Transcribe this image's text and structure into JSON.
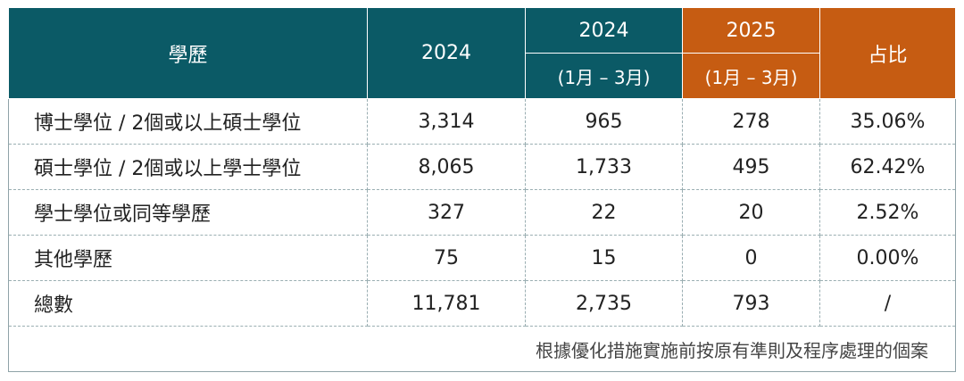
{
  "header": {
    "education": "學歷",
    "col_2024": "2024",
    "col_2024_q": "2024",
    "col_2024_q_sub": "(1月 – 3月)",
    "col_2025": "2025",
    "col_2025_sub": "(1月 – 3月)",
    "share": "占比"
  },
  "rows": [
    {
      "label": "博士學位 / 2個或以上碩士學位",
      "y2024": "3,314",
      "y2024q": "965",
      "y2025q": "278",
      "share": "35.06%"
    },
    {
      "label": "碩士學位 / 2個或以上學士學位",
      "y2024": "8,065",
      "y2024q": "1,733",
      "y2025q": "495",
      "share": "62.42%"
    },
    {
      "label": "學士學位或同等學歷",
      "y2024": "327",
      "y2024q": "22",
      "y2025q": "20",
      "share": "2.52%"
    },
    {
      "label": "其他學歷",
      "y2024": "75",
      "y2024q": "15",
      "y2025q": "0",
      "share": "0.00%"
    },
    {
      "label": "總數",
      "y2024": "11,781",
      "y2024q": "2,735",
      "y2025q": "793",
      "share": "/"
    }
  ],
  "note": "根據優化措施實施前按原有準則及程序處理的個案",
  "colors": {
    "teal": "#0b5a66",
    "orange": "#c65c12"
  }
}
